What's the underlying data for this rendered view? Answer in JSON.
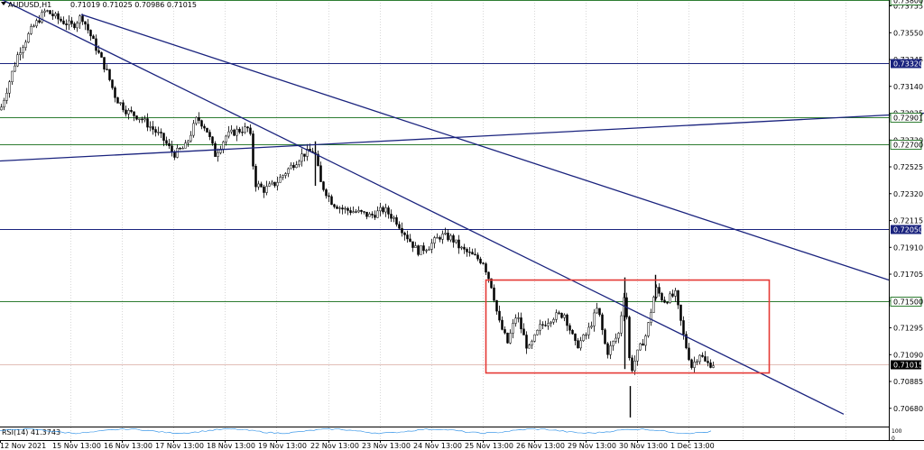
{
  "chart_data": {
    "type": "candlestick",
    "header": {
      "symbol": "AUDUSD,H1",
      "ohlc_text": "0.71019 0.71025 0.70986 0.71015"
    },
    "price_axis": {
      "ylim": [
        0.70575,
        0.738
      ],
      "tick_labels": [
        "0.73755",
        "0.73550",
        "0.73345",
        "0.73140",
        "0.72935",
        "0.72730",
        "0.72525",
        "0.72320",
        "0.72115",
        "0.71910",
        "0.71705",
        "0.71500",
        "0.71295",
        "0.71090",
        "0.70885",
        "0.70680"
      ]
    },
    "x_axis": {
      "tick_labels": [
        "12 Nov 2021",
        "15 Nov 13:00",
        "16 Nov 13:00",
        "17 Nov 13:00",
        "18 Nov 13:00",
        "19 Nov 13:00",
        "22 Nov 13:00",
        "23 Nov 13:00",
        "24 Nov 13:00",
        "25 Nov 13:00",
        "26 Nov 13:00",
        "29 Nov 13:00",
        "30 Nov 13:00",
        "1 Dec 13:00"
      ]
    },
    "horizontal_levels": [
      {
        "price": 0.738,
        "label": "0.73800",
        "color": "#2e7d32",
        "label_style": "outlined"
      },
      {
        "price": 0.7332,
        "label": "0.73320",
        "color": "#1a237e",
        "label_style": "filled"
      },
      {
        "price": 0.72901,
        "label": "0.72901",
        "color": "#2e7d32",
        "label_style": "outlined"
      },
      {
        "price": 0.727,
        "label": "0.72700",
        "color": "#2e7d32",
        "label_style": "outlined"
      },
      {
        "price": 0.7205,
        "label": "0.72050",
        "color": "#1a237e",
        "label_style": "filled"
      },
      {
        "price": 0.715,
        "label": "0.71500",
        "color": "#2e7d32",
        "label_style": "outlined"
      },
      {
        "price": 0.71015,
        "label": "0.71015",
        "color": "#d9a9a0",
        "label_style": "current"
      }
    ],
    "trendlines": [
      {
        "from": {
          "bar": 0,
          "price": 0.7257
        },
        "to": {
          "bar": 1024,
          "price": 0.72935
        },
        "color": "#1a237e"
      },
      {
        "from": {
          "bar": 90,
          "price": 0.7369
        },
        "to": {
          "bar": 985,
          "price": 0.7166
        },
        "color": "#1a237e"
      },
      {
        "from": {
          "bar": 0,
          "price": 0.7381
        },
        "to": {
          "bar": 935,
          "price": 0.70635
        },
        "color": "#1a237e"
      }
    ],
    "box": {
      "price_top": 0.7166,
      "price_bottom": 0.7095,
      "from_bar": 538,
      "to_bar": 852,
      "color": "#e53935"
    },
    "rsi": {
      "label": "RSI(14) 41.3743",
      "value": 41.3743,
      "axis_labels": [
        "100",
        "0"
      ]
    },
    "candles": []
  }
}
